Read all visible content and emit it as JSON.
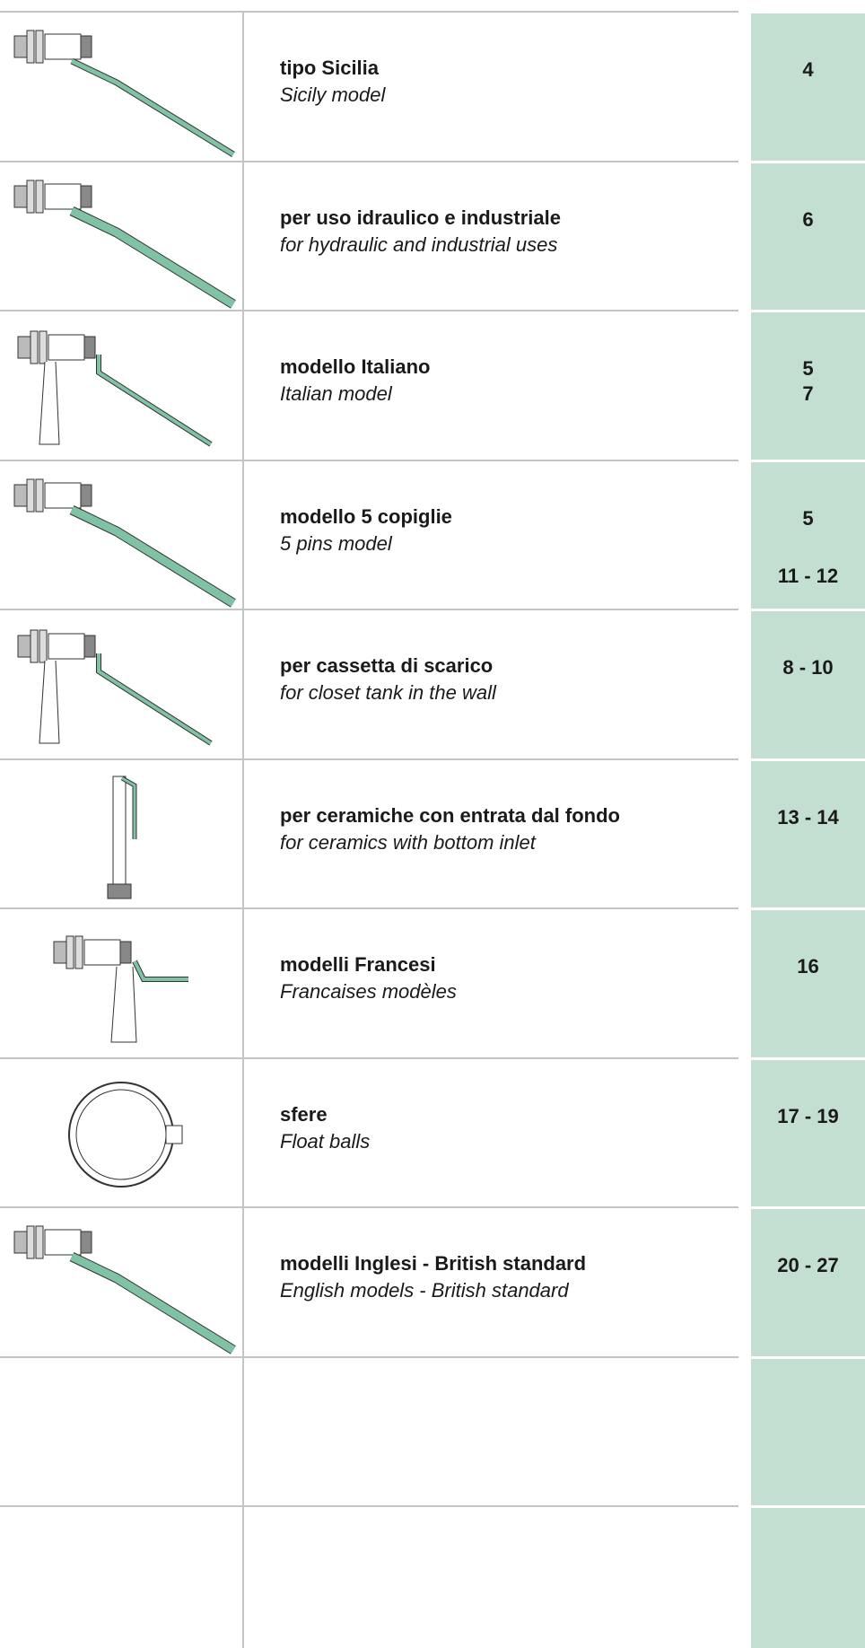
{
  "rows": [
    {
      "title": "tipo Sicilia",
      "subtitle": "Sicily model",
      "pages": [
        "4"
      ]
    },
    {
      "title": "per uso idraulico e industriale",
      "subtitle": "for hydraulic and industrial uses",
      "pages": [
        "6"
      ]
    },
    {
      "title": "modello Italiano",
      "subtitle": "Italian model",
      "pages": [
        "5",
        "7"
      ]
    },
    {
      "title": "modello 5 copiglie",
      "subtitle": "5 pins model",
      "pages": [
        "5",
        "11 - 12"
      ]
    },
    {
      "title": "per cassetta di scarico",
      "subtitle": "for closet tank in the wall",
      "pages": [
        "8 - 10"
      ]
    },
    {
      "title": "per ceramiche con entrata dal fondo",
      "subtitle": "for ceramics with bottom inlet",
      "pages": [
        "13 - 14"
      ]
    },
    {
      "title": "modelli Francesi",
      "subtitle": "Francaises modèles",
      "pages": [
        "16"
      ]
    },
    {
      "title": "sfere",
      "subtitle": "Float balls",
      "pages": [
        "17 - 19"
      ]
    },
    {
      "title": "modelli Inglesi - British standard",
      "subtitle": "English models - British standard",
      "pages": [
        "20 - 27"
      ]
    }
  ]
}
